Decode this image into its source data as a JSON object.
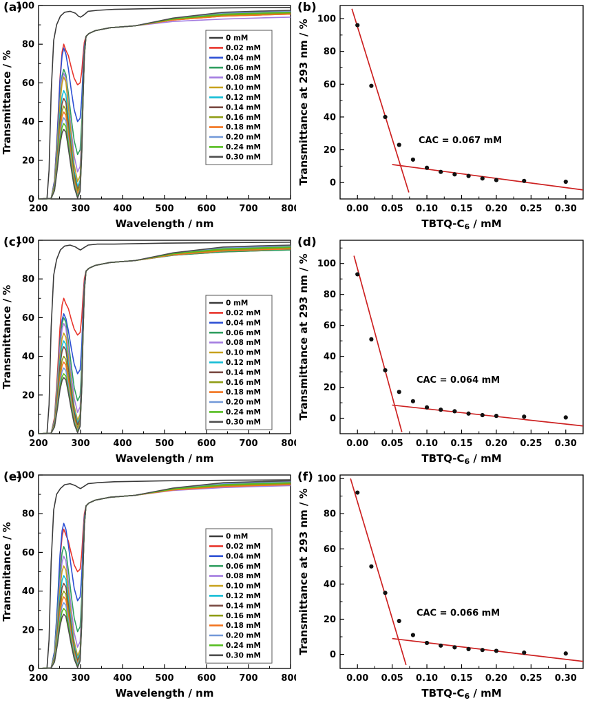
{
  "chart_data": [
    {
      "panel_label": "(a)",
      "type": "line",
      "variant": "uv-vis-transmittance-spectra",
      "xlabel": "Wavelength / nm",
      "ylabel": "Transmittance / %",
      "xlim": [
        200,
        800
      ],
      "ylim": [
        0,
        100
      ],
      "xticks": [
        200,
        300,
        400,
        500,
        600,
        700,
        800
      ],
      "yticks": [
        0,
        20,
        40,
        60,
        80,
        100
      ],
      "legend_pos": [
        299,
        44
      ],
      "series": [
        {
          "label": "0 mM",
          "color": "#3a3a3a",
          "shape": "flat-high",
          "peak_260nm": 96.5,
          "dip_293nm": 94,
          "plateau_800nm": 99
        },
        {
          "label": "0.02 mM",
          "color": "#e8352c",
          "shape": "peak-dip",
          "peak_260nm": 80,
          "dip_293nm": 59,
          "plateau_800nm": 95.5
        },
        {
          "label": "0.04 mM",
          "color": "#2c4fd4",
          "shape": "peak-dip",
          "peak_260nm": 78,
          "dip_293nm": 40,
          "plateau_800nm": 96
        },
        {
          "label": "0.06 mM",
          "color": "#2f9e5f",
          "shape": "peak-dip",
          "peak_260nm": 67,
          "dip_293nm": 23,
          "plateau_800nm": 96.5
        },
        {
          "label": "0.08 mM",
          "color": "#a37ce0",
          "shape": "peak-dip",
          "peak_260nm": 65,
          "dip_293nm": 14,
          "plateau_800nm": 94
        },
        {
          "label": "0.10 mM",
          "color": "#c7a11c",
          "shape": "peak-dip",
          "peak_260nm": 63,
          "dip_293nm": 9,
          "plateau_800nm": 96
        },
        {
          "label": "0.12 mM",
          "color": "#14bdd6",
          "shape": "peak-dip",
          "peak_260nm": 56,
          "dip_293nm": 6.5,
          "plateau_800nm": 96.5
        },
        {
          "label": "0.14 mM",
          "color": "#7a4a42",
          "shape": "peak-dip",
          "peak_260nm": 52,
          "dip_293nm": 5,
          "plateau_800nm": 97
        },
        {
          "label": "0.16 mM",
          "color": "#8f9c14",
          "shape": "peak-dip",
          "peak_260nm": 48,
          "dip_293nm": 4,
          "plateau_800nm": 96
        },
        {
          "label": "0.18 mM",
          "color": "#f2741f",
          "shape": "peak-dip",
          "peak_260nm": 45,
          "dip_293nm": 2.5,
          "plateau_800nm": 95.5
        },
        {
          "label": "0.20 mM",
          "color": "#7298d8",
          "shape": "peak-dip",
          "peak_260nm": 42,
          "dip_293nm": 1.5,
          "plateau_800nm": 97
        },
        {
          "label": "0.24 mM",
          "color": "#56bd20",
          "shape": "peak-dip",
          "peak_260nm": 39,
          "dip_293nm": 1,
          "plateau_800nm": 96.5
        },
        {
          "label": "0.30 mM",
          "color": "#4d4d4d",
          "shape": "peak-dip",
          "peak_260nm": 36,
          "dip_293nm": 0.5,
          "plateau_800nm": 97.5
        }
      ]
    },
    {
      "panel_label": "(b)",
      "type": "scatter",
      "xlabel_parts": {
        "main": "TBTQ-C",
        "sub": "6",
        "rest": " / mM"
      },
      "ylabel": "Transmittance at 293 nm / %",
      "xlim": [
        -0.025,
        0.325
      ],
      "ylim": [
        -10,
        108
      ],
      "xticks": [
        0,
        0.05,
        0.1,
        0.15,
        0.2,
        0.25,
        0.3
      ],
      "yticks": [
        0,
        20,
        40,
        60,
        80,
        100
      ],
      "x": [
        0,
        0.02,
        0.04,
        0.06,
        0.08,
        0.1,
        0.12,
        0.14,
        0.16,
        0.18,
        0.2,
        0.24,
        0.3
      ],
      "y": [
        96,
        59,
        40,
        23,
        14,
        9,
        6.5,
        5,
        4,
        2.5,
        1.5,
        1,
        0.5
      ],
      "point_color": "#111111",
      "fit_lines": [
        {
          "color": "#cd2222",
          "from": [
            -0.008,
            106
          ],
          "to": [
            0.074,
            -6
          ]
        },
        {
          "color": "#cd2222",
          "from": [
            0.05,
            11
          ],
          "to": [
            0.325,
            -4.5
          ]
        }
      ],
      "annotation": "CAC = 0.067 mM",
      "annotation_pos": [
        0.088,
        24
      ]
    },
    {
      "panel_label": "(c)",
      "type": "line",
      "variant": "uv-vis-transmittance-spectra",
      "xlabel": "Wavelength / nm",
      "ylabel": "Transmittance / %",
      "xlim": [
        200,
        800
      ],
      "ylim": [
        0,
        100
      ],
      "xticks": [
        200,
        300,
        400,
        500,
        600,
        700,
        800
      ],
      "yticks": [
        0,
        20,
        40,
        60,
        80,
        100
      ],
      "legend_pos": [
        299,
        88
      ],
      "series": [
        {
          "label": "0 mM",
          "color": "#3a3a3a",
          "shape": "flat-high",
          "peak_260nm": 97,
          "dip_293nm": 95,
          "plateau_800nm": 99
        },
        {
          "label": "0.02 mM",
          "color": "#e8352c",
          "shape": "peak-dip",
          "peak_260nm": 70,
          "dip_293nm": 51,
          "plateau_800nm": 95
        },
        {
          "label": "0.04 mM",
          "color": "#2c4fd4",
          "shape": "peak-dip",
          "peak_260nm": 62,
          "dip_293nm": 31,
          "plateau_800nm": 96
        },
        {
          "label": "0.06 mM",
          "color": "#2f9e5f",
          "shape": "peak-dip",
          "peak_260nm": 60,
          "dip_293nm": 17,
          "plateau_800nm": 95
        },
        {
          "label": "0.08 mM",
          "color": "#a37ce0",
          "shape": "peak-dip",
          "peak_260nm": 57,
          "dip_293nm": 11,
          "plateau_800nm": 95.5
        },
        {
          "label": "0.10 mM",
          "color": "#c7a11c",
          "shape": "peak-dip",
          "peak_260nm": 52,
          "dip_293nm": 7,
          "plateau_800nm": 96
        },
        {
          "label": "0.12 mM",
          "color": "#14bdd6",
          "shape": "peak-dip",
          "peak_260nm": 48,
          "dip_293nm": 5.5,
          "plateau_800nm": 96.5
        },
        {
          "label": "0.14 mM",
          "color": "#7a4a42",
          "shape": "peak-dip",
          "peak_260nm": 45,
          "dip_293nm": 4.5,
          "plateau_800nm": 97
        },
        {
          "label": "0.16 mM",
          "color": "#8f9c14",
          "shape": "peak-dip",
          "peak_260nm": 40,
          "dip_293nm": 3,
          "plateau_800nm": 96
        },
        {
          "label": "0.18 mM",
          "color": "#f2741f",
          "shape": "peak-dip",
          "peak_260nm": 37,
          "dip_293nm": 2,
          "plateau_800nm": 95.5
        },
        {
          "label": "0.20 mM",
          "color": "#7298d8",
          "shape": "peak-dip",
          "peak_260nm": 34,
          "dip_293nm": 1.5,
          "plateau_800nm": 97
        },
        {
          "label": "0.24 mM",
          "color": "#56bd20",
          "shape": "peak-dip",
          "peak_260nm": 31,
          "dip_293nm": 1,
          "plateau_800nm": 96.5
        },
        {
          "label": "0.30 mM",
          "color": "#4d4d4d",
          "shape": "peak-dip",
          "peak_260nm": 29,
          "dip_293nm": 0.5,
          "plateau_800nm": 97.5
        }
      ]
    },
    {
      "panel_label": "(d)",
      "type": "scatter",
      "xlabel_parts": {
        "main": "TBTQ-C",
        "sub": "6",
        "rest": " / mM"
      },
      "ylabel": "Transmittance at 293 nm / %",
      "xlim": [
        -0.025,
        0.325
      ],
      "ylim": [
        -10,
        115
      ],
      "xticks": [
        0,
        0.05,
        0.1,
        0.15,
        0.2,
        0.25,
        0.3
      ],
      "yticks": [
        0,
        20,
        40,
        60,
        80,
        100
      ],
      "x": [
        0,
        0.02,
        0.04,
        0.06,
        0.08,
        0.1,
        0.12,
        0.14,
        0.16,
        0.18,
        0.2,
        0.24,
        0.3
      ],
      "y": [
        93,
        51,
        31,
        17,
        11,
        7,
        5.5,
        4.5,
        3,
        2,
        1.5,
        1,
        0.5
      ],
      "point_color": "#111111",
      "fit_lines": [
        {
          "color": "#cd2222",
          "from": [
            -0.005,
            105
          ],
          "to": [
            0.064,
            -9
          ]
        },
        {
          "color": "#cd2222",
          "from": [
            0.05,
            8.5
          ],
          "to": [
            0.325,
            -5
          ]
        }
      ],
      "annotation": "CAC = 0.064 mM",
      "annotation_pos": [
        0.085,
        23
      ]
    },
    {
      "panel_label": "(e)",
      "type": "line",
      "variant": "uv-vis-transmittance-spectra",
      "xlabel": "Wavelength / nm",
      "ylabel": "Transmitance / %",
      "xlim": [
        200,
        800
      ],
      "ylim": [
        0,
        100
      ],
      "xticks": [
        200,
        300,
        400,
        500,
        600,
        700,
        800
      ],
      "yticks": [
        0,
        20,
        40,
        60,
        80,
        100
      ],
      "legend_pos": [
        299,
        86
      ],
      "series": [
        {
          "label": "0 mM",
          "color": "#3a3a3a",
          "shape": "flat-high",
          "peak_260nm": 95,
          "dip_293nm": 93,
          "plateau_800nm": 97.5
        },
        {
          "label": "0.02 mM",
          "color": "#e8352c",
          "shape": "peak-dip",
          "peak_260nm": 72,
          "dip_293nm": 50,
          "plateau_800nm": 95
        },
        {
          "label": "0.04 mM",
          "color": "#2c4fd4",
          "shape": "peak-dip",
          "peak_260nm": 75,
          "dip_293nm": 35,
          "plateau_800nm": 95.5
        },
        {
          "label": "0.06 mM",
          "color": "#2f9e5f",
          "shape": "peak-dip",
          "peak_260nm": 63,
          "dip_293nm": 19,
          "plateau_800nm": 96
        },
        {
          "label": "0.08 mM",
          "color": "#a37ce0",
          "shape": "peak-dip",
          "peak_260nm": 58,
          "dip_293nm": 11,
          "plateau_800nm": 94.5
        },
        {
          "label": "0.10 mM",
          "color": "#c7a11c",
          "shape": "peak-dip",
          "peak_260nm": 53,
          "dip_293nm": 6.5,
          "plateau_800nm": 95.5
        },
        {
          "label": "0.12 mM",
          "color": "#14bdd6",
          "shape": "peak-dip",
          "peak_260nm": 48,
          "dip_293nm": 5,
          "plateau_800nm": 96
        },
        {
          "label": "0.14 mM",
          "color": "#7a4a42",
          "shape": "peak-dip",
          "peak_260nm": 44,
          "dip_293nm": 4,
          "plateau_800nm": 96.5
        },
        {
          "label": "0.16 mM",
          "color": "#8f9c14",
          "shape": "peak-dip",
          "peak_260nm": 40,
          "dip_293nm": 3,
          "plateau_800nm": 95.5
        },
        {
          "label": "0.18 mM",
          "color": "#f2741f",
          "shape": "peak-dip",
          "peak_260nm": 37,
          "dip_293nm": 2.5,
          "plateau_800nm": 95
        },
        {
          "label": "0.20 mM",
          "color": "#7298d8",
          "shape": "peak-dip",
          "peak_260nm": 34,
          "dip_293nm": 2,
          "plateau_800nm": 96.5
        },
        {
          "label": "0.24 mM",
          "color": "#56bd20",
          "shape": "peak-dip",
          "peak_260nm": 31,
          "dip_293nm": 1,
          "plateau_800nm": 96
        },
        {
          "label": "0.30 mM",
          "color": "#4d4d4d",
          "shape": "peak-dip",
          "peak_260nm": 28,
          "dip_293nm": 0.5,
          "plateau_800nm": 97
        }
      ]
    },
    {
      "panel_label": "(f)",
      "type": "scatter",
      "xlabel_parts": {
        "main": "TBTQ-C",
        "sub": "6",
        "rest": " / mM"
      },
      "ylabel": "Transmittance at 293 nm / %",
      "xlim": [
        -0.025,
        0.325
      ],
      "ylim": [
        -8,
        102
      ],
      "xticks": [
        0,
        0.05,
        0.1,
        0.15,
        0.2,
        0.25,
        0.3
      ],
      "yticks": [
        0,
        20,
        40,
        60,
        80,
        100
      ],
      "x": [
        0,
        0.02,
        0.04,
        0.06,
        0.08,
        0.1,
        0.12,
        0.14,
        0.16,
        0.18,
        0.2,
        0.24,
        0.3
      ],
      "y": [
        92,
        50,
        35,
        19,
        11,
        6.5,
        5,
        4,
        3,
        2.5,
        2,
        1,
        0.5
      ],
      "point_color": "#111111",
      "fit_lines": [
        {
          "color": "#cd2222",
          "from": [
            -0.01,
            100
          ],
          "to": [
            0.07,
            -6
          ]
        },
        {
          "color": "#cd2222",
          "from": [
            0.05,
            9
          ],
          "to": [
            0.325,
            -4
          ]
        }
      ],
      "annotation": "CAC = 0.066 mM",
      "annotation_pos": [
        0.085,
        22
      ]
    }
  ]
}
